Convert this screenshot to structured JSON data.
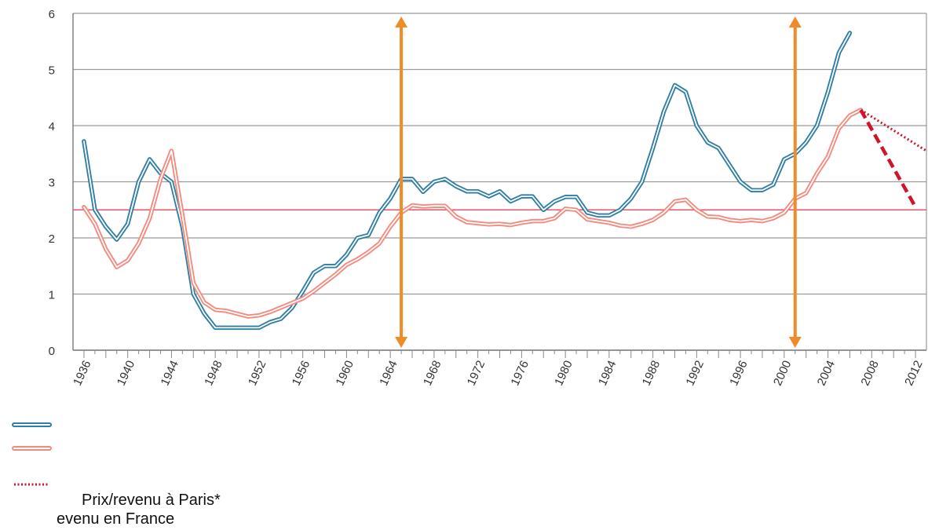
{
  "chart_data": {
    "type": "line",
    "x_ticks": [
      "1936",
      "1940",
      "1944",
      "1948",
      "1952",
      "1956",
      "1960",
      "1964",
      "1968",
      "1972",
      "1976",
      "1980",
      "1984",
      "1988",
      "1992",
      "1996",
      "2000",
      "2004",
      "2008",
      "2012"
    ],
    "y_ticks": [
      "0",
      "1",
      "2",
      "3",
      "4",
      "5",
      "6"
    ],
    "xlim": [
      1935,
      2013
    ],
    "ylim": [
      0,
      6
    ],
    "grid": true,
    "series": [
      {
        "color": "#2e7fa3",
        "x": [
          1936,
          1937,
          1938,
          1939,
          1940,
          1941,
          1942,
          1943,
          1944,
          1945,
          1946,
          1947,
          1948,
          1949,
          1950,
          1951,
          1952,
          1953,
          1954,
          1955,
          1956,
          1957,
          1958,
          1959,
          1960,
          1961,
          1962,
          1963,
          1964,
          1965,
          1966,
          1967,
          1968,
          1969,
          1970,
          1971,
          1972,
          1973,
          1974,
          1975,
          1976,
          1977,
          1978,
          1979,
          1980,
          1981,
          1982,
          1983,
          1984,
          1985,
          1986,
          1987,
          1988,
          1989,
          1990,
          1991,
          1992,
          1993,
          1994,
          1995,
          1996,
          1997,
          1998,
          1999,
          2000,
          2001,
          2002,
          2003,
          2004,
          2005,
          2006
        ],
        "values": [
          3.72,
          2.5,
          2.2,
          1.97,
          2.25,
          3.0,
          3.4,
          3.15,
          3.0,
          2.2,
          1.0,
          0.65,
          0.4,
          0.4,
          0.4,
          0.4,
          0.4,
          0.5,
          0.56,
          0.75,
          1.05,
          1.38,
          1.5,
          1.5,
          1.7,
          2.0,
          2.05,
          2.45,
          2.7,
          3.05,
          3.05,
          2.82,
          3.0,
          3.05,
          2.92,
          2.83,
          2.83,
          2.74,
          2.83,
          2.65,
          2.74,
          2.74,
          2.5,
          2.65,
          2.73,
          2.73,
          2.45,
          2.4,
          2.4,
          2.5,
          2.7,
          3.0,
          3.6,
          4.25,
          4.72,
          4.6,
          4.0,
          3.7,
          3.6,
          3.3,
          3.0,
          2.85,
          2.85,
          2.95,
          3.4,
          3.5,
          3.7,
          4.0,
          4.6,
          5.3,
          5.65
        ]
      },
      {
        "color": "#f4897c",
        "x": [
          1936,
          1937,
          1938,
          1939,
          1940,
          1941,
          1942,
          1943,
          1944,
          1945,
          1946,
          1947,
          1948,
          1949,
          1950,
          1951,
          1952,
          1953,
          1954,
          1955,
          1956,
          1957,
          1958,
          1959,
          1960,
          1961,
          1962,
          1963,
          1964,
          1965,
          1966,
          1967,
          1968,
          1969,
          1970,
          1971,
          1972,
          1973,
          1974,
          1975,
          1976,
          1977,
          1978,
          1979,
          1980,
          1981,
          1982,
          1983,
          1984,
          1985,
          1986,
          1987,
          1988,
          1989,
          1990,
          1991,
          1992,
          1993,
          1994,
          1995,
          1996,
          1997,
          1998,
          1999,
          2000,
          2001,
          2002,
          2003,
          2004,
          2005,
          2006,
          2007
        ],
        "values": [
          2.55,
          2.25,
          1.8,
          1.48,
          1.6,
          1.9,
          2.35,
          3.05,
          3.55,
          2.4,
          1.2,
          0.85,
          0.72,
          0.7,
          0.65,
          0.6,
          0.62,
          0.68,
          0.76,
          0.84,
          0.92,
          1.05,
          1.2,
          1.35,
          1.52,
          1.62,
          1.75,
          1.9,
          2.2,
          2.45,
          2.58,
          2.56,
          2.57,
          2.57,
          2.38,
          2.28,
          2.26,
          2.24,
          2.25,
          2.23,
          2.27,
          2.3,
          2.3,
          2.35,
          2.52,
          2.5,
          2.33,
          2.3,
          2.27,
          2.22,
          2.2,
          2.25,
          2.32,
          2.45,
          2.65,
          2.68,
          2.5,
          2.38,
          2.37,
          2.32,
          2.3,
          2.32,
          2.3,
          2.35,
          2.45,
          2.7,
          2.8,
          3.15,
          3.45,
          3.95,
          4.18,
          4.28
        ]
      }
    ],
    "projections": [
      {
        "style": "dotted",
        "color": "#d0142c",
        "x": [
          2007,
          2013
        ],
        "values": [
          4.28,
          3.55
        ]
      },
      {
        "style": "dashed",
        "color": "#d0142c",
        "x": [
          2007,
          2012
        ],
        "values": [
          4.28,
          2.55
        ]
      }
    ],
    "reference_line": {
      "value": 2.5,
      "color": "#e8556a"
    },
    "markers": [
      {
        "x": 1965,
        "color": "#f08c28",
        "direction": "both"
      },
      {
        "x": 2001,
        "color": "#f08c28",
        "direction": "both"
      }
    ],
    "legend_lines": [
      {
        "color": "#2e7fa3",
        "style": "double"
      },
      {
        "color": "#f4897c",
        "style": "double"
      },
      {
        "color": "#d0142c",
        "style": "dotted"
      }
    ]
  },
  "legend": {
    "label_paris": "Prix/revenu à Paris*",
    "label_france": "evenu en France"
  }
}
